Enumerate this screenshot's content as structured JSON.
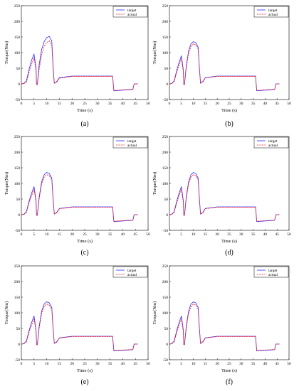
{
  "figure": {
    "panel_labels": [
      "(a)",
      "(b)",
      "(c)",
      "(d)",
      "(e)",
      "(f)"
    ]
  },
  "colors": {
    "target": "#2a2aff",
    "actual": "#ff2020",
    "axis": "#000000"
  },
  "chart_data": [
    {
      "type": "line",
      "panel": "(a)",
      "xlabel": "Time (s)",
      "ylabel": "Torque(Nm)",
      "xlim": [
        0,
        50
      ],
      "ylim": [
        -50,
        250
      ],
      "xticks": [
        0,
        5,
        10,
        15,
        20,
        25,
        30,
        35,
        40,
        45,
        50
      ],
      "yticks": [
        -50,
        0,
        50,
        100,
        150,
        200,
        250
      ],
      "grid": false,
      "legend": "top-right",
      "series": [
        {
          "name": "target",
          "x": [
            0,
            1,
            2,
            3,
            4,
            5,
            5.8,
            6,
            6.3,
            7,
            8,
            9,
            10,
            11,
            11.8,
            12,
            12.5,
            13,
            14,
            15,
            20,
            25,
            30,
            35,
            36,
            36.5,
            40,
            44,
            44.5,
            46
          ],
          "y": [
            0,
            2,
            10,
            45,
            75,
            95,
            50,
            -2,
            -2,
            60,
            110,
            135,
            148,
            152,
            140,
            138,
            60,
            2,
            8,
            20,
            25,
            25,
            25,
            25,
            25,
            -22,
            -20,
            -18,
            0,
            0
          ]
        },
        {
          "name": "actual",
          "x": [
            0,
            1,
            2,
            3,
            4,
            5,
            5.8,
            6,
            6.3,
            7,
            8,
            9,
            10,
            11,
            11.8,
            12,
            12.5,
            13,
            14,
            15,
            20,
            25,
            30,
            35,
            36,
            36.5,
            40,
            44,
            44.5,
            46
          ],
          "y": [
            0,
            1,
            6,
            35,
            62,
            82,
            42,
            -2,
            -2,
            45,
            95,
            120,
            132,
            138,
            126,
            124,
            50,
            2,
            6,
            18,
            24,
            24,
            24,
            24,
            24,
            -21,
            -19,
            -17,
            0,
            0
          ]
        }
      ]
    },
    {
      "type": "line",
      "panel": "(b)",
      "xlabel": "Time (s)",
      "ylabel": "Torque(Nm)",
      "xlim": [
        0,
        50
      ],
      "ylim": [
        -50,
        250
      ],
      "xticks": [
        0,
        5,
        10,
        15,
        20,
        25,
        30,
        35,
        40,
        45,
        50
      ],
      "yticks": [
        -50,
        0,
        50,
        100,
        150,
        200,
        250
      ],
      "grid": false,
      "legend": "top-right",
      "series": [
        {
          "name": "target",
          "x": [
            0,
            1,
            2,
            3,
            4,
            5,
            5.8,
            6,
            6.3,
            7,
            8,
            9,
            10,
            11,
            11.8,
            12,
            12.5,
            13,
            14,
            15,
            20,
            25,
            30,
            35,
            36,
            36.5,
            40,
            44,
            44.5,
            46
          ],
          "y": [
            0,
            2,
            10,
            42,
            68,
            90,
            45,
            -2,
            -2,
            55,
            105,
            128,
            135,
            132,
            120,
            118,
            55,
            2,
            8,
            20,
            25,
            25,
            25,
            25,
            25,
            -22,
            -20,
            -18,
            0,
            0
          ]
        },
        {
          "name": "actual",
          "x": [
            0,
            1,
            2,
            3,
            4,
            5,
            5.8,
            6,
            6.3,
            7,
            8,
            9,
            10,
            11,
            11.8,
            12,
            12.5,
            13,
            14,
            15,
            20,
            25,
            30,
            35,
            36,
            36.5,
            40,
            44,
            44.5,
            46
          ],
          "y": [
            0,
            1,
            7,
            36,
            60,
            80,
            40,
            -2,
            -2,
            48,
            98,
            120,
            128,
            125,
            114,
            112,
            50,
            2,
            6,
            19,
            24,
            24,
            24,
            24,
            24,
            -21,
            -19,
            -17,
            0,
            0
          ]
        }
      ]
    },
    {
      "type": "line",
      "panel": "(c)",
      "xlabel": "Time (s)",
      "ylabel": "Torque(Nm)",
      "xlim": [
        0,
        50
      ],
      "ylim": [
        -50,
        250
      ],
      "xticks": [
        0,
        5,
        10,
        15,
        20,
        25,
        30,
        35,
        40,
        45,
        50
      ],
      "yticks": [
        -50,
        0,
        50,
        100,
        150,
        200,
        250
      ],
      "grid": false,
      "legend": "top-right",
      "series": [
        {
          "name": "target",
          "x": [
            0,
            1,
            2,
            3,
            4,
            5,
            5.8,
            6,
            6.3,
            7,
            8,
            9,
            10,
            11,
            11.8,
            12,
            12.5,
            13,
            14,
            15,
            20,
            25,
            30,
            35,
            36,
            36.5,
            40,
            44,
            44.5,
            46
          ],
          "y": [
            0,
            2,
            10,
            42,
            68,
            90,
            45,
            -2,
            -2,
            55,
            105,
            128,
            135,
            132,
            120,
            118,
            55,
            2,
            8,
            20,
            25,
            25,
            25,
            25,
            25,
            -22,
            -20,
            -18,
            0,
            0
          ]
        },
        {
          "name": "actual",
          "x": [
            0,
            1,
            2,
            3,
            4,
            5,
            5.8,
            6,
            6.3,
            7,
            8,
            9,
            10,
            11,
            11.8,
            12,
            12.5,
            13,
            14,
            15,
            20,
            25,
            30,
            35,
            36,
            36.5,
            40,
            44,
            44.5,
            46
          ],
          "y": [
            0,
            1,
            7,
            36,
            60,
            80,
            40,
            -2,
            -2,
            48,
            98,
            120,
            128,
            125,
            114,
            112,
            50,
            2,
            6,
            19,
            24,
            24,
            24,
            24,
            24,
            -21,
            -19,
            -17,
            0,
            0
          ]
        }
      ]
    },
    {
      "type": "line",
      "panel": "(d)",
      "xlabel": "Time (s)",
      "ylabel": "Torque(Nm)",
      "xlim": [
        0,
        50
      ],
      "ylim": [
        -50,
        250
      ],
      "xticks": [
        0,
        5,
        10,
        15,
        20,
        25,
        30,
        35,
        40,
        45,
        50
      ],
      "yticks": [
        -50,
        0,
        50,
        100,
        150,
        200,
        250
      ],
      "grid": false,
      "legend": "top-right",
      "series": [
        {
          "name": "target",
          "x": [
            0,
            1,
            2,
            3,
            4,
            5,
            5.8,
            6,
            6.3,
            7,
            8,
            9,
            10,
            11,
            11.8,
            12,
            12.5,
            13,
            14,
            15,
            20,
            25,
            30,
            35,
            36,
            36.5,
            40,
            44,
            44.5,
            46
          ],
          "y": [
            0,
            2,
            10,
            42,
            68,
            90,
            45,
            -2,
            -2,
            55,
            105,
            128,
            135,
            132,
            120,
            118,
            55,
            2,
            8,
            20,
            25,
            25,
            25,
            25,
            25,
            -22,
            -20,
            -18,
            0,
            0
          ]
        },
        {
          "name": "actual",
          "x": [
            0,
            1,
            2,
            3,
            4,
            5,
            5.8,
            6,
            6.3,
            7,
            8,
            9,
            10,
            11,
            11.8,
            12,
            12.5,
            13,
            14,
            15,
            20,
            25,
            30,
            35,
            36,
            36.5,
            40,
            44,
            44.5,
            46
          ],
          "y": [
            0,
            1,
            7,
            36,
            60,
            80,
            40,
            -2,
            -2,
            48,
            98,
            120,
            128,
            125,
            114,
            112,
            50,
            2,
            6,
            19,
            24,
            24,
            24,
            24,
            24,
            -21,
            -19,
            -17,
            0,
            0
          ]
        }
      ]
    },
    {
      "type": "line",
      "panel": "(e)",
      "xlabel": "Time (s)",
      "ylabel": "Torque(Nm)",
      "xlim": [
        0,
        50
      ],
      "ylim": [
        -50,
        250
      ],
      "xticks": [
        0,
        5,
        10,
        15,
        20,
        25,
        30,
        35,
        40,
        45,
        50
      ],
      "yticks": [
        -50,
        0,
        50,
        100,
        150,
        200,
        250
      ],
      "grid": false,
      "legend": "top-right",
      "series": [
        {
          "name": "target",
          "x": [
            0,
            1,
            2,
            3,
            4,
            5,
            5.8,
            6,
            6.3,
            7,
            8,
            9,
            10,
            11,
            11.8,
            12,
            12.5,
            13,
            14,
            15,
            20,
            25,
            30,
            35,
            36,
            36.5,
            40,
            44,
            44.5,
            46
          ],
          "y": [
            0,
            2,
            10,
            42,
            68,
            90,
            45,
            -2,
            -2,
            55,
            105,
            128,
            135,
            132,
            120,
            118,
            55,
            2,
            8,
            20,
            25,
            25,
            25,
            25,
            25,
            -22,
            -20,
            -18,
            0,
            0
          ]
        },
        {
          "name": "actual",
          "x": [
            0,
            1,
            2,
            3,
            4,
            5,
            5.8,
            6,
            6.3,
            7,
            8,
            9,
            10,
            11,
            11.8,
            12,
            12.5,
            13,
            14,
            15,
            20,
            25,
            30,
            35,
            36,
            36.5,
            40,
            44,
            44.5,
            46
          ],
          "y": [
            0,
            1,
            7,
            36,
            60,
            80,
            40,
            -2,
            -2,
            48,
            98,
            120,
            128,
            125,
            114,
            112,
            50,
            2,
            6,
            19,
            24,
            24,
            24,
            24,
            24,
            -21,
            -19,
            -17,
            0,
            0
          ]
        }
      ]
    },
    {
      "type": "line",
      "panel": "(f)",
      "xlabel": "Time (s)",
      "ylabel": "Torque(Nm)",
      "xlim": [
        0,
        50
      ],
      "ylim": [
        -50,
        250
      ],
      "xticks": [
        0,
        5,
        10,
        15,
        20,
        25,
        30,
        35,
        40,
        45,
        50
      ],
      "yticks": [
        -50,
        0,
        50,
        100,
        150,
        200,
        250
      ],
      "grid": false,
      "legend": "top-right",
      "series": [
        {
          "name": "target",
          "x": [
            0,
            1,
            2,
            3,
            4,
            5,
            5.8,
            6,
            6.3,
            7,
            8,
            9,
            10,
            11,
            11.8,
            12,
            12.5,
            13,
            14,
            15,
            20,
            25,
            30,
            35,
            36,
            36.5,
            40,
            44,
            44.5,
            46
          ],
          "y": [
            0,
            2,
            10,
            42,
            68,
            90,
            45,
            -2,
            -2,
            55,
            105,
            128,
            135,
            132,
            120,
            118,
            55,
            2,
            8,
            20,
            25,
            25,
            25,
            25,
            25,
            -22,
            -20,
            -18,
            0,
            0
          ]
        },
        {
          "name": "actual",
          "x": [
            0,
            1,
            2,
            3,
            4,
            5,
            5.8,
            6,
            6.3,
            7,
            8,
            9,
            10,
            11,
            11.8,
            12,
            12.5,
            13,
            14,
            15,
            20,
            25,
            30,
            35,
            36,
            36.5,
            40,
            44,
            44.5,
            46
          ],
          "y": [
            0,
            1,
            7,
            36,
            60,
            80,
            40,
            -2,
            -2,
            48,
            98,
            120,
            128,
            125,
            114,
            112,
            50,
            2,
            6,
            19,
            24,
            24,
            24,
            24,
            24,
            -21,
            -19,
            -17,
            0,
            0
          ]
        }
      ]
    }
  ]
}
